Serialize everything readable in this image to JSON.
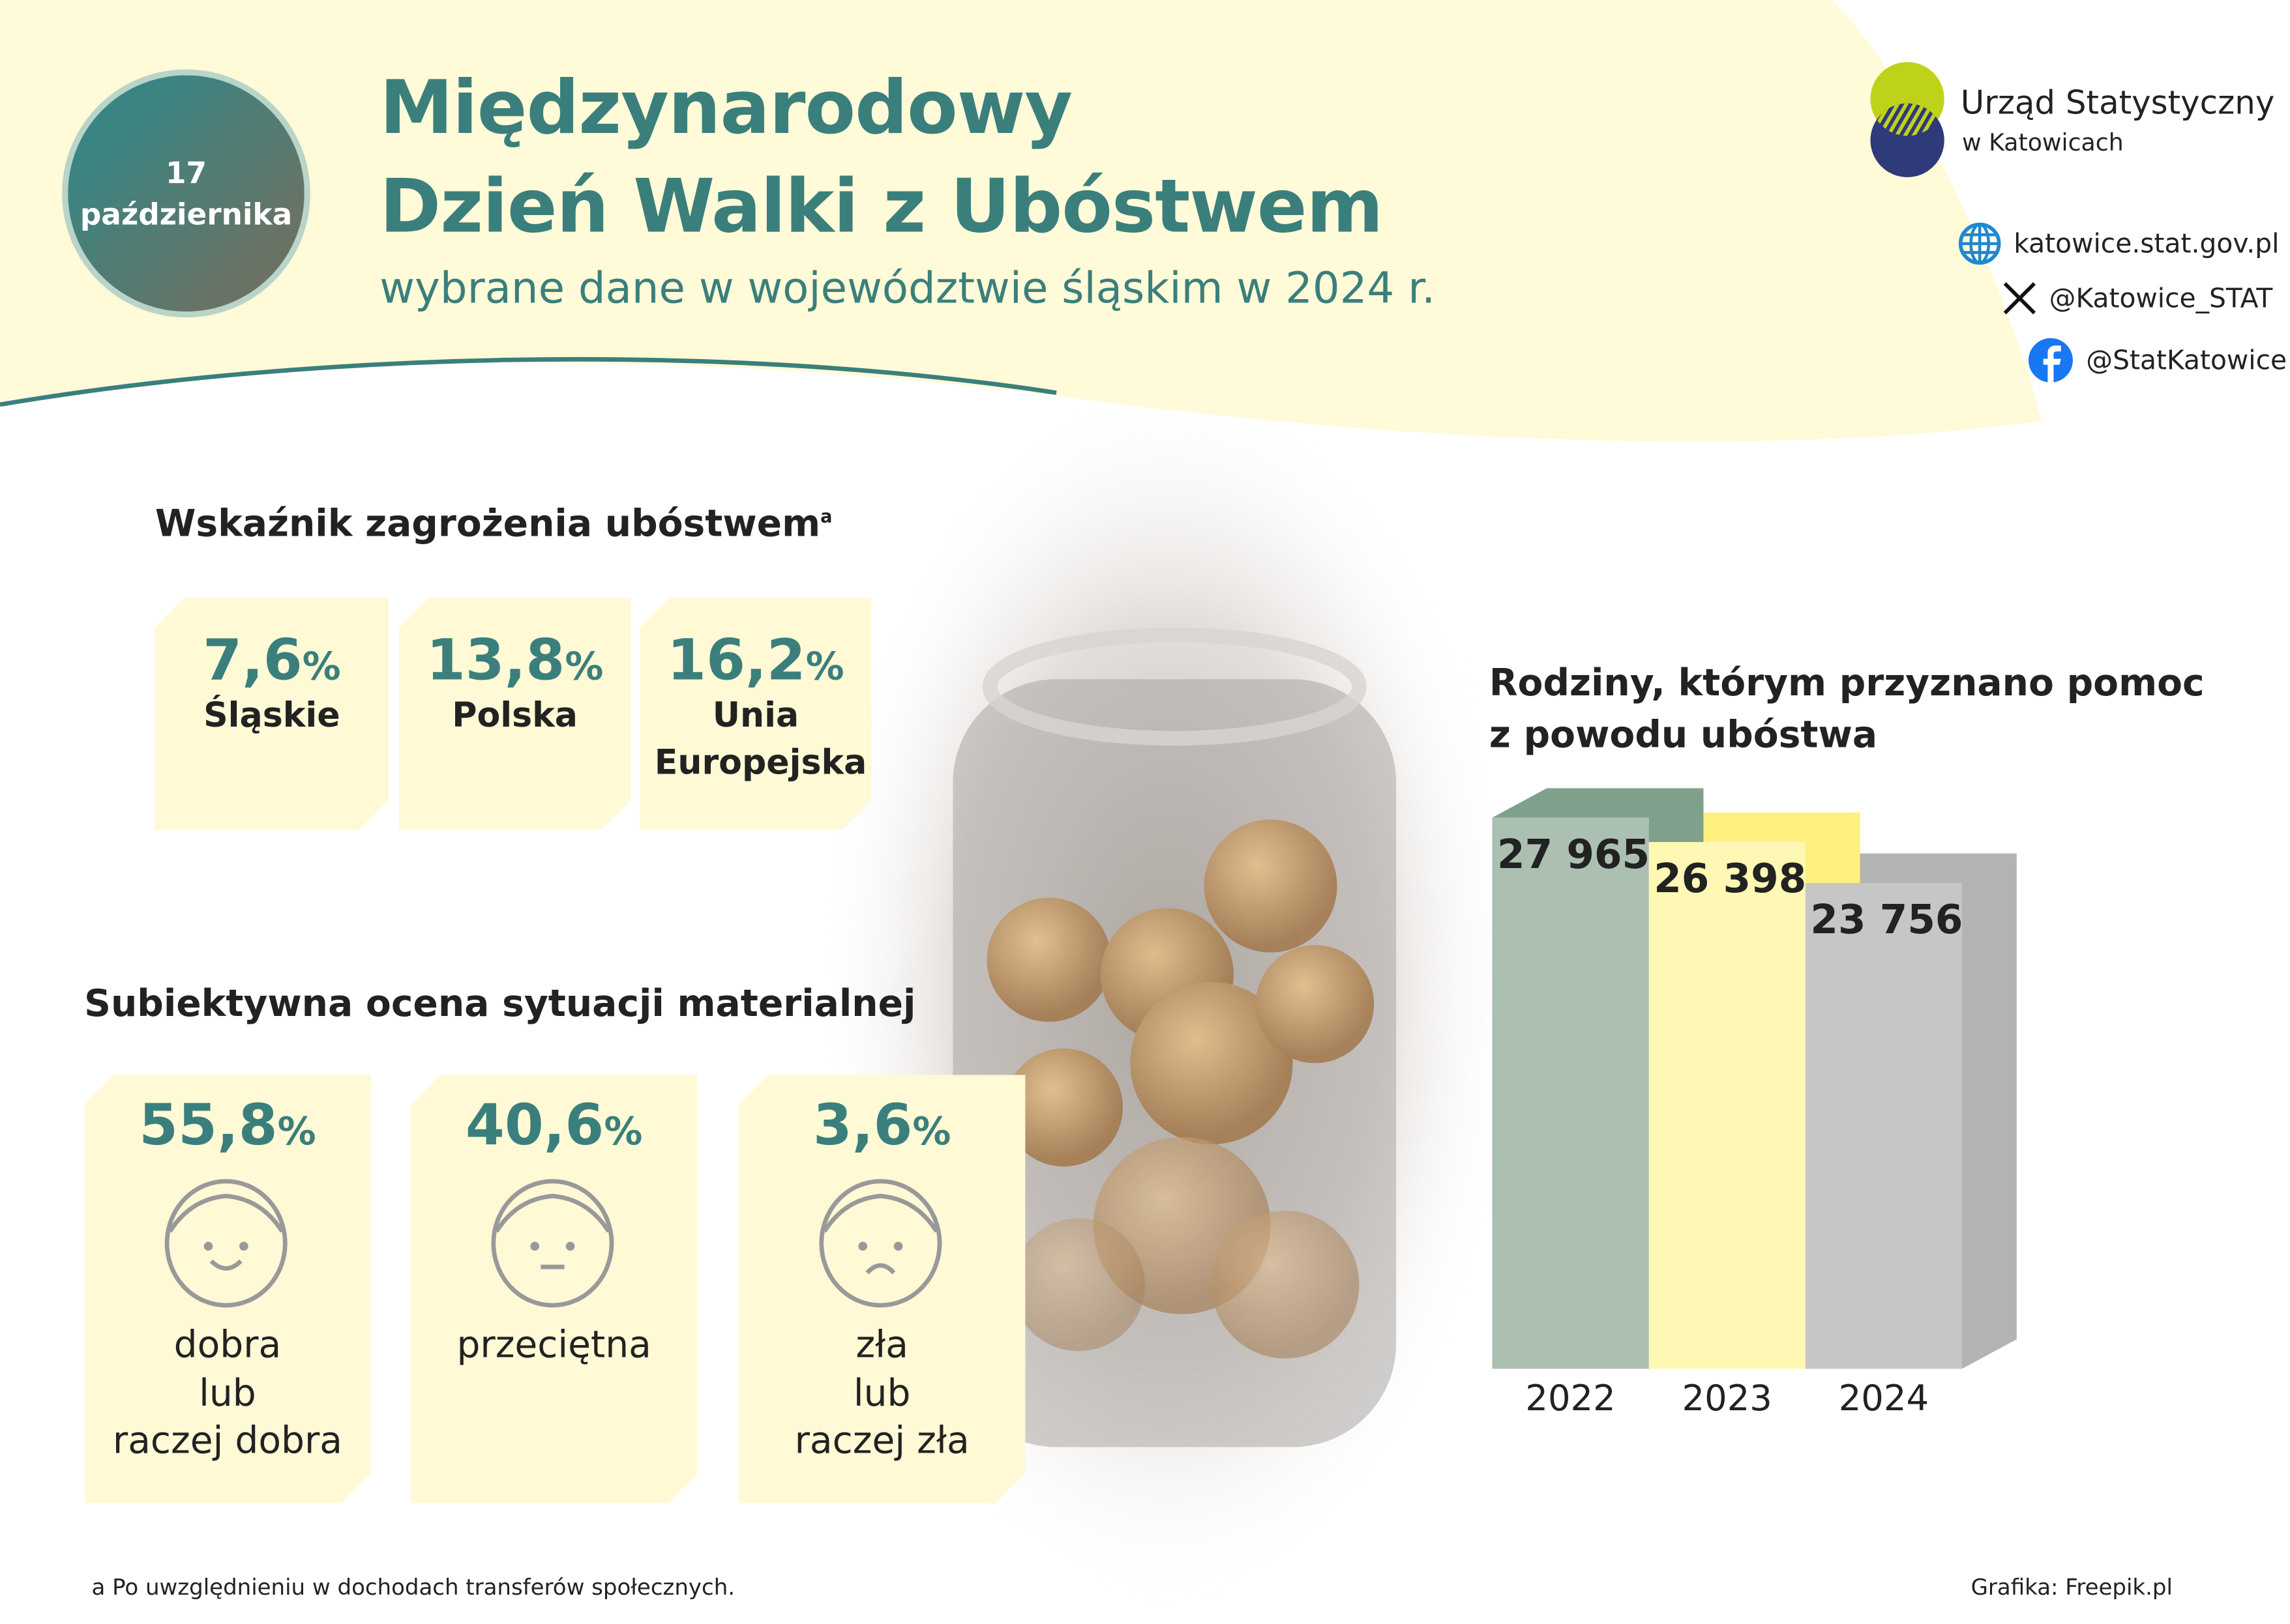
{
  "header": {
    "date_day": "17",
    "date_month": "października",
    "title_line1": "Międzynarodowy",
    "title_line2": "Dzień Walki z Ubóstwem",
    "subtitle": "wybrane dane w województwie śląskim w 2024 r."
  },
  "logo": {
    "line1": "Urząd Statystyczny",
    "line2": "w Katowicach",
    "colors": {
      "top": "#bfd21a",
      "bottom": "#2e3a7a"
    }
  },
  "links": [
    {
      "icon": "globe-icon",
      "text": "katowice.stat.gov.pl"
    },
    {
      "icon": "x-icon",
      "text": "@Katowice_STAT"
    },
    {
      "icon": "facebook-icon",
      "text": "@StatKatowice"
    }
  ],
  "poverty": {
    "heading": "Wskaźnik zagrożenia ubóstwem",
    "footnote_mark": "a",
    "items": [
      {
        "value": "7,6",
        "unit": "%",
        "label": "Śląskie"
      },
      {
        "value": "13,8",
        "unit": "%",
        "label": "Polska"
      },
      {
        "value": "16,2",
        "unit": "%",
        "label": "Unia Europejska"
      }
    ]
  },
  "assessment": {
    "heading": "Subiektywna ocena sytuacji materialnej",
    "items": [
      {
        "value": "55,8",
        "unit": "%",
        "mood": "happy",
        "label_lines": [
          "dobra",
          "lub",
          "raczej dobra"
        ]
      },
      {
        "value": "40,6",
        "unit": "%",
        "mood": "neutral",
        "label_lines": [
          "przeciętna"
        ]
      },
      {
        "value": "3,6",
        "unit": "%",
        "mood": "sad",
        "label_lines": [
          "zła",
          "lub",
          "raczej zła"
        ]
      }
    ]
  },
  "chart_data": {
    "type": "bar",
    "title": "Rodziny, którym przyznano pomoc z powodu ubóstwa",
    "title_lines": [
      "Rodziny, którym przyznano pomoc",
      "z powodu ubóstwa"
    ],
    "categories": [
      "2022",
      "2023",
      "2024"
    ],
    "values": [
      27965,
      26398,
      23756
    ],
    "value_labels": [
      "27 965",
      "26 398",
      "23 756"
    ],
    "colors": [
      "#acc0b2",
      "#fff8b4",
      "#c5c6c5"
    ],
    "style": "3d"
  },
  "footer": {
    "note": "a Po uwzględnieniu w dochodach transferów społecznych.",
    "credit": "Grafika: Freepik.pl"
  },
  "theme": {
    "accent": "#3a7f7c",
    "box": "#fff9d6"
  }
}
